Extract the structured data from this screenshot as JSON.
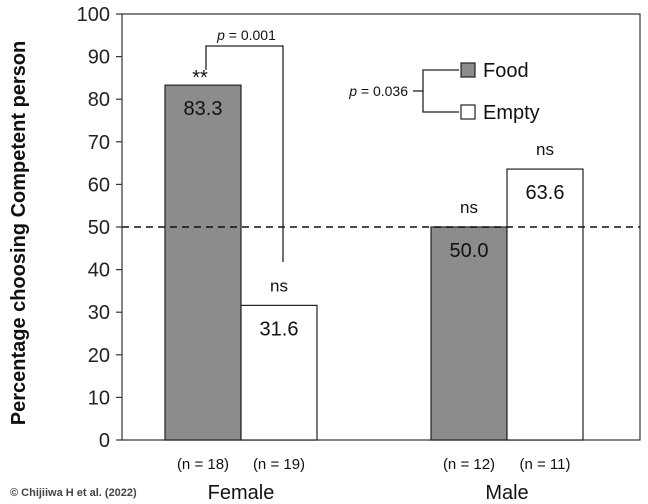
{
  "chart_data": {
    "type": "bar",
    "ylabel": "Percentage choosing Competent person",
    "ylim": [
      0,
      100
    ],
    "yticks": [
      0,
      10,
      20,
      30,
      40,
      50,
      60,
      70,
      80,
      90,
      100
    ],
    "reference_line": 50,
    "categories": [
      "Female",
      "Male"
    ],
    "series": [
      {
        "name": "Food",
        "color": "#8c8c8c",
        "values": [
          83.3,
          50.0
        ],
        "value_labels": [
          "83.3",
          "50.0"
        ],
        "significance": [
          "**",
          "ns"
        ],
        "n": [
          "(n = 18)",
          "(n = 12)"
        ]
      },
      {
        "name": "Empty",
        "color": "#ffffff",
        "values": [
          31.6,
          63.6
        ],
        "value_labels": [
          "31.6",
          "63.6"
        ],
        "significance": [
          "ns",
          "ns"
        ],
        "n": [
          "(n = 19)",
          "(n = 11)"
        ]
      }
    ],
    "comparisons": [
      {
        "p_symbol": "p",
        "p_value": " = 0.001",
        "between": "Female Food vs Female Empty"
      },
      {
        "p_symbol": "p",
        "p_value": " = 0.036",
        "between": "Food vs Empty"
      }
    ],
    "legend": {
      "position": "top-right",
      "items": [
        "Food",
        "Empty"
      ]
    }
  },
  "credit": "© Chijiiwa H et al. (2022)"
}
